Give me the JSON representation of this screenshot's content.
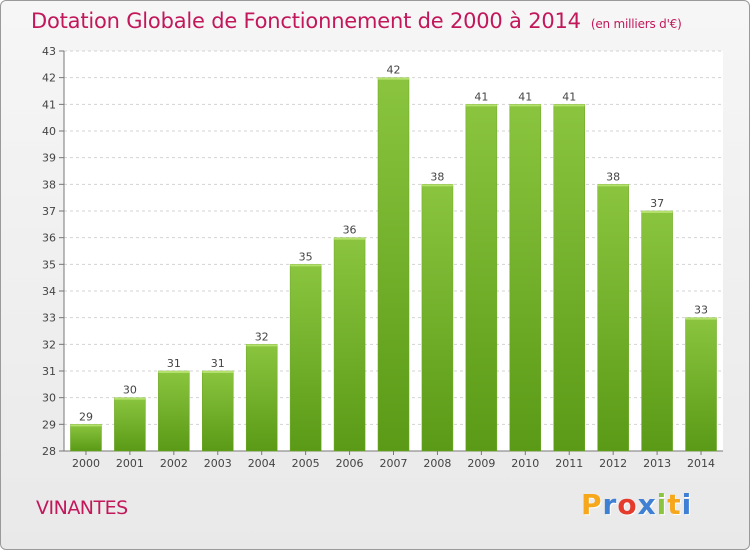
{
  "header": {
    "title": "Dotation Globale de Fonctionnement de 2000 à 2014",
    "unit": "(en milliers d'€)"
  },
  "footer": {
    "commune": "VINANTES",
    "logo_letters": [
      "P",
      "r",
      "o",
      "x",
      "i",
      "t",
      "i"
    ],
    "logo_colors": [
      "#f7a71b",
      "#3f7fd4",
      "#e53b2c",
      "#3f7fd4",
      "#8bc53f",
      "#f7a71b",
      "#3f7fd4"
    ]
  },
  "chart_data": {
    "type": "bar",
    "categories": [
      "2000",
      "2001",
      "2002",
      "2003",
      "2004",
      "2005",
      "2006",
      "2007",
      "2008",
      "2009",
      "2010",
      "2011",
      "2012",
      "2013",
      "2014"
    ],
    "values": [
      29,
      30,
      31,
      31,
      32,
      35,
      36,
      42,
      38,
      41,
      41,
      41,
      38,
      37,
      33
    ],
    "ylim": [
      28,
      43
    ],
    "yticks": [
      28,
      29,
      30,
      31,
      32,
      33,
      34,
      35,
      36,
      37,
      38,
      39,
      40,
      41,
      42,
      43
    ],
    "grid": true,
    "bar_color_top": "#8bc53f",
    "bar_color_bottom": "#5a9a16"
  }
}
